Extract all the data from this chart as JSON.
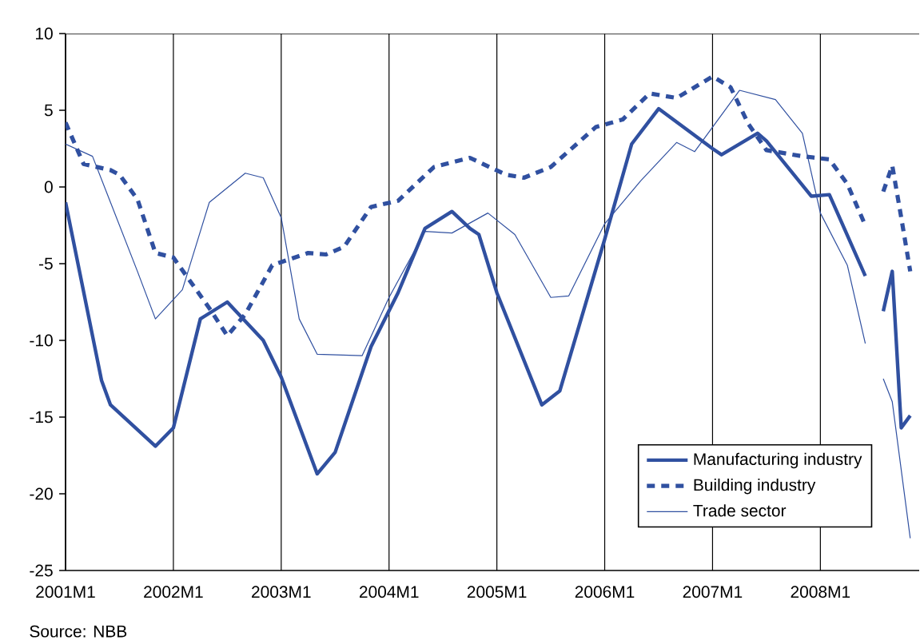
{
  "chart_data": {
    "type": "line",
    "xlim": [
      "2001-01",
      "2008-12"
    ],
    "xticks": [
      {
        "value": "2001-01",
        "label": "2001M1"
      },
      {
        "value": "2002-01",
        "label": "2002M1"
      },
      {
        "value": "2003-01",
        "label": "2003M1"
      },
      {
        "value": "2004-01",
        "label": "2004M1"
      },
      {
        "value": "2005-01",
        "label": "2005M1"
      },
      {
        "value": "2006-01",
        "label": "2006M1"
      },
      {
        "value": "2007-01",
        "label": "2007M1"
      },
      {
        "value": "2008-01",
        "label": "2008M1"
      }
    ],
    "ylim": [
      -25,
      10
    ],
    "yticks": [
      -25,
      -20,
      -15,
      -10,
      -5,
      0,
      5,
      10
    ],
    "grid": "x",
    "legend": "bottom right",
    "marker": "none",
    "series": [
      {
        "name": "Manufacturing industry",
        "color": "#3050a0",
        "line_style": "solid",
        "x": [
          "2001-01",
          "2001-05",
          "2001-06",
          "2001-11",
          "2002-01",
          "2002-04",
          "2002-07",
          "2002-11",
          "2003-01",
          "2003-05",
          "2003-07",
          "2003-11",
          "2004-02",
          "2004-05",
          "2004-08",
          "2004-10",
          "2004-11",
          "2005-01",
          "2005-06",
          "2005-08",
          "2006-01",
          "2006-04",
          "2006-07",
          "2007-01",
          "2007-02",
          "2007-06",
          "2007-07",
          "2007-12",
          "2008-02",
          "2008-06",
          "2008-07",
          "2008-08",
          "2008-09",
          "2008-10",
          "2008-11"
        ],
        "values": [
          -1.0,
          -12.6,
          -14.2,
          -16.9,
          -15.7,
          -8.6,
          -7.5,
          -10.0,
          -12.4,
          -18.7,
          -17.3,
          -10.4,
          -6.9,
          -2.7,
          -1.6,
          -2.7,
          -3.1,
          -6.9,
          -14.2,
          -13.3,
          -3.4,
          2.8,
          5.1,
          2.5,
          2.1,
          3.5,
          3.0,
          -0.6,
          -0.5,
          -5.8,
          null,
          -8.1,
          -5.5,
          -15.7,
          -14.9
        ]
      },
      {
        "name": "Building industry",
        "color": "#3050a0",
        "line_style": "dashed",
        "x": [
          "2001-01",
          "2001-03",
          "2001-06",
          "2001-07",
          "2001-09",
          "2001-11",
          "2002-01",
          "2002-05",
          "2002-07",
          "2002-09",
          "2002-12",
          "2003-04",
          "2003-06",
          "2003-08",
          "2003-11",
          "2004-02",
          "2004-06",
          "2004-10",
          "2005-02",
          "2005-04",
          "2005-07",
          "2005-12",
          "2006-03",
          "2006-06",
          "2006-09",
          "2007-01",
          "2007-03",
          "2007-05",
          "2007-07",
          "2007-11",
          "2008-02",
          "2008-04",
          "2008-06",
          "2008-07",
          "2008-08",
          "2008-09",
          "2008-10",
          "2008-11"
        ],
        "values": [
          4.2,
          1.5,
          1.1,
          0.8,
          -0.8,
          -4.3,
          -4.6,
          -7.9,
          -9.7,
          -8.3,
          -5.1,
          -4.3,
          -4.4,
          -3.9,
          -1.3,
          -0.9,
          1.3,
          1.9,
          0.8,
          0.6,
          1.3,
          3.9,
          4.4,
          6.1,
          5.8,
          7.2,
          6.5,
          4.1,
          2.4,
          2.0,
          1.8,
          0.2,
          -2.5,
          null,
          -0.3,
          1.4,
          -2.0,
          -5.5
        ]
      },
      {
        "name": "Trade sector",
        "color": "#3050a0",
        "line_style": "solid",
        "x": [
          "2001-01",
          "2001-04",
          "2001-06",
          "2001-09",
          "2001-11",
          "2002-02",
          "2002-05",
          "2002-09",
          "2002-11",
          "2003-01",
          "2003-03",
          "2003-05",
          "2003-10",
          "2004-01",
          "2004-05",
          "2004-08",
          "2004-12",
          "2005-03",
          "2005-07",
          "2005-09",
          "2006-01",
          "2006-05",
          "2006-09",
          "2006-11",
          "2007-04",
          "2007-08",
          "2007-11",
          "2008-01",
          "2008-04",
          "2008-06",
          "2008-07",
          "2008-08",
          "2008-09",
          "2008-11"
        ],
        "values": [
          2.8,
          2.0,
          -1.0,
          -5.5,
          -8.6,
          -6.7,
          -1.0,
          0.9,
          0.6,
          -2.0,
          -8.6,
          -10.9,
          -11.0,
          -7.2,
          -2.9,
          -3.0,
          -1.7,
          -3.1,
          -7.2,
          -7.1,
          -2.4,
          0.4,
          2.9,
          2.3,
          6.3,
          5.7,
          3.5,
          -1.7,
          -5.1,
          -10.2,
          null,
          -12.5,
          -14.0,
          -22.9
        ]
      }
    ],
    "annotations": [
      "Source: NBB"
    ]
  }
}
